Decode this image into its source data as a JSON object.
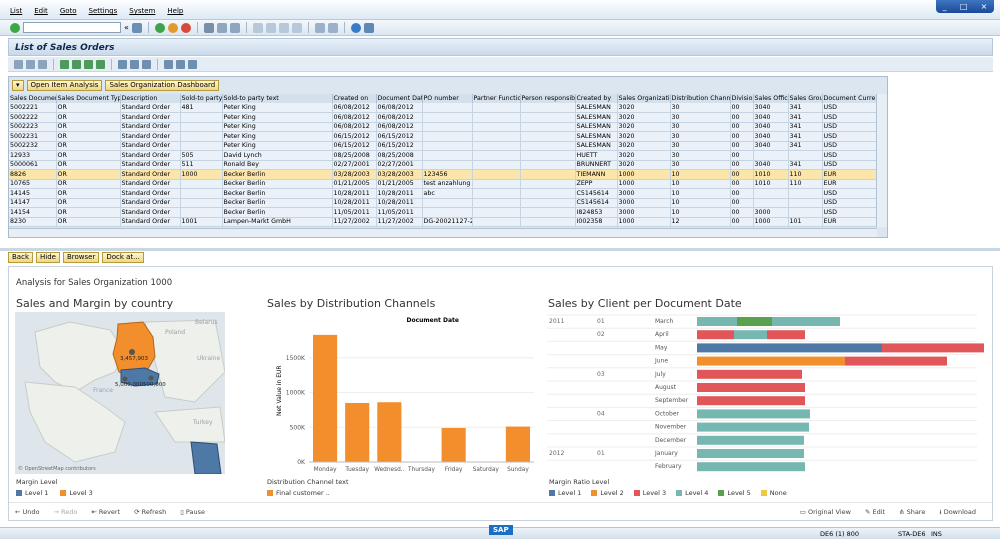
{
  "menu": [
    "List",
    "Edit",
    "Goto",
    "Settings",
    "System",
    "Help"
  ],
  "window_controls": [
    "_",
    "□",
    "×"
  ],
  "command_field": "",
  "screen_title": "List of Sales Orders",
  "grid": {
    "tool_buttons": [
      "Open Item Analysis",
      "Sales Organization Dashboard"
    ],
    "columns": [
      "Sales Document",
      "Sales Document Type",
      "Description",
      "Sold-to party",
      "Sold-to party text",
      "Created on",
      "Document Date",
      "PO number",
      "Partner Function",
      "Person responsible",
      "Created by",
      "Sales Organization",
      "Distribution Channel",
      "Division",
      "Sales Office",
      "Sales Group",
      "Document Curre"
    ],
    "rows": [
      [
        "5002221",
        "OR",
        "Standard Order",
        "481",
        "Peter King",
        "06/08/2012",
        "06/08/2012",
        "",
        "",
        "",
        "SALESMAN",
        "3020",
        "30",
        "00",
        "3040",
        "341",
        "USD"
      ],
      [
        "5002222",
        "OR",
        "Standard Order",
        "",
        "Peter King",
        "06/08/2012",
        "06/08/2012",
        "",
        "",
        "",
        "SALESMAN",
        "3020",
        "30",
        "00",
        "3040",
        "341",
        "USD"
      ],
      [
        "5002223",
        "OR",
        "Standard Order",
        "",
        "Peter King",
        "06/08/2012",
        "06/08/2012",
        "",
        "",
        "",
        "SALESMAN",
        "3020",
        "30",
        "00",
        "3040",
        "341",
        "USD"
      ],
      [
        "5002231",
        "OR",
        "Standard Order",
        "",
        "Peter King",
        "06/15/2012",
        "06/15/2012",
        "",
        "",
        "",
        "SALESMAN",
        "3020",
        "30",
        "00",
        "3040",
        "341",
        "USD"
      ],
      [
        "5002232",
        "OR",
        "Standard Order",
        "",
        "Peter King",
        "06/15/2012",
        "06/15/2012",
        "",
        "",
        "",
        "SALESMAN",
        "3020",
        "30",
        "00",
        "3040",
        "341",
        "USD"
      ],
      [
        "12933",
        "OR",
        "Standard Order",
        "505",
        "David Lynch",
        "08/25/2008",
        "08/25/2008",
        "",
        "",
        "",
        "HUETT",
        "3020",
        "30",
        "00",
        "",
        "",
        "USD"
      ],
      [
        "5000061",
        "OR",
        "Standard Order",
        "511",
        "Ronald Bey",
        "02/27/2001",
        "02/27/2001",
        "",
        "",
        "",
        "BRUNNERT",
        "3020",
        "30",
        "00",
        "3040",
        "341",
        "USD"
      ],
      [
        "8826",
        "OR",
        "Standard Order",
        "1000",
        "Becker Berlin",
        "03/28/2003",
        "03/28/2003",
        "123456",
        "",
        "",
        "TIEMANN",
        "1000",
        "10",
        "00",
        "1010",
        "110",
        "EUR"
      ],
      [
        "10765",
        "OR",
        "Standard Order",
        "",
        "Becker Berlin",
        "01/21/2005",
        "01/21/2005",
        "test anzahlung",
        "",
        "",
        "ZEPP",
        "1000",
        "10",
        "00",
        "1010",
        "110",
        "EUR"
      ],
      [
        "14145",
        "OR",
        "Standard Order",
        "",
        "Becker Berlin",
        "10/28/2011",
        "10/28/2011",
        "abc",
        "",
        "",
        "C5145614",
        "3000",
        "10",
        "00",
        "",
        "",
        "USD"
      ],
      [
        "14147",
        "OR",
        "Standard Order",
        "",
        "Becker Berlin",
        "10/28/2011",
        "10/28/2011",
        "",
        "",
        "",
        "C5145614",
        "3000",
        "10",
        "00",
        "",
        "",
        "USD"
      ],
      [
        "14154",
        "OR",
        "Standard Order",
        "",
        "Becker Berlin",
        "11/05/2011",
        "11/05/2011",
        "",
        "",
        "",
        "I824853",
        "3000",
        "10",
        "00",
        "3000",
        "",
        "USD"
      ],
      [
        "8230",
        "OR",
        "Standard Order",
        "1001",
        "Lampen-Markt GmbH",
        "11/27/2002",
        "11/27/2002",
        "DG-20021127-2",
        "",
        "",
        "I002358",
        "1000",
        "12",
        "00",
        "1000",
        "101",
        "EUR"
      ]
    ],
    "selected_row": 7
  },
  "dash_buttons": [
    "Back",
    "Hide",
    "Browser",
    "Dock at..."
  ],
  "dashboard": {
    "title": "Analysis for Sales Organization 1000",
    "panel1": {
      "title": "Sales and Margin by country",
      "labels": {
        "poland": "Poland",
        "belarus": "Belarus",
        "ukraine": "Ukraine",
        "france": "France",
        "turkey": "Turkey",
        "value1": "3,457,903",
        "value2": "5,000,000",
        "value3": "500,000",
        "attribution": "© OpenStreetMap contributors"
      },
      "legend_title": "Margin Level",
      "legend": [
        {
          "name": "Level 1",
          "color": "#4e79a7"
        },
        {
          "name": "Level 3",
          "color": "#f28e2b"
        }
      ]
    },
    "panel2": {
      "title": "Sales by Distribution Channels",
      "legend_title": "Distribution Channel text",
      "legend": [
        {
          "name": "Final customer ..",
          "color": "#f28e2b"
        }
      ]
    },
    "panel3": {
      "title": "Sales by Client per Document Date",
      "legend_title": "Margin Ratio Level",
      "legend": [
        {
          "name": "Level 1",
          "color": "#4e79a7"
        },
        {
          "name": "Level 2",
          "color": "#f28e2b"
        },
        {
          "name": "Level 3",
          "color": "#e15759"
        },
        {
          "name": "Level 4",
          "color": "#76b7b2"
        },
        {
          "name": "Level 5",
          "color": "#59a14f"
        },
        {
          "name": "None",
          "color": "#edc948"
        }
      ]
    },
    "footer_left": [
      "Undo",
      "Redo",
      "Revert",
      "Refresh",
      "Pause"
    ],
    "footer_right": [
      "Original View",
      "Edit",
      "Share",
      "Download"
    ]
  },
  "chart_data": [
    {
      "type": "bar",
      "title": "Document Date",
      "ylabel": "Net Value in EUR",
      "categories": [
        "Monday",
        "Tuesday",
        "Wednesd..",
        "Thursday",
        "Friday",
        "Saturday",
        "Sunday"
      ],
      "values": [
        1830000,
        850000,
        860000,
        0,
        490000,
        0,
        510000
      ],
      "yticks": [
        "0K",
        "500K",
        "1000K",
        "1500K"
      ],
      "ylim": [
        0,
        1900000
      ],
      "color": "#f28e2b"
    },
    {
      "type": "bar",
      "orientation": "horizontal-stacked",
      "categories": [
        {
          "year": "2011",
          "quarter": "01",
          "month": "March"
        },
        {
          "year": "",
          "quarter": "02",
          "month": "April"
        },
        {
          "year": "",
          "quarter": "",
          "month": "May"
        },
        {
          "year": "",
          "quarter": "",
          "month": "June"
        },
        {
          "year": "",
          "quarter": "03",
          "month": "July"
        },
        {
          "year": "",
          "quarter": "",
          "month": "August"
        },
        {
          "year": "",
          "quarter": "",
          "month": "September"
        },
        {
          "year": "",
          "quarter": "04",
          "month": "October"
        },
        {
          "year": "",
          "quarter": "",
          "month": "November"
        },
        {
          "year": "",
          "quarter": "",
          "month": "December"
        },
        {
          "year": "2012",
          "quarter": "01",
          "month": "January"
        },
        {
          "year": "",
          "quarter": "",
          "month": "February"
        }
      ],
      "rows": [
        [
          {
            "level": "Level 4",
            "value": 40
          },
          {
            "level": "Level 5",
            "value": 35
          },
          {
            "level": "Level 4",
            "value": 68
          }
        ],
        [
          {
            "level": "Level 3",
            "value": 37
          },
          {
            "level": "Level 4",
            "value": 33
          },
          {
            "level": "Level 3",
            "value": 38
          }
        ],
        [
          {
            "level": "Level 1",
            "value": 185
          },
          {
            "level": "Level 3",
            "value": 102
          }
        ],
        [
          {
            "level": "Level 2",
            "value": 148
          },
          {
            "level": "Level 3",
            "value": 102
          }
        ],
        [
          {
            "level": "Level 3",
            "value": 105
          }
        ],
        [
          {
            "level": "Level 3",
            "value": 108
          }
        ],
        [
          {
            "level": "Level 3",
            "value": 108
          }
        ],
        [
          {
            "level": "Level 4",
            "value": 113
          }
        ],
        [
          {
            "level": "Level 4",
            "value": 112
          }
        ],
        [
          {
            "level": "Level 4",
            "value": 107
          }
        ],
        [
          {
            "level": "Level 4",
            "value": 107
          }
        ],
        [
          {
            "level": "Level 4",
            "value": 108
          }
        ]
      ]
    }
  ],
  "statusbar": {
    "system": "DE6 (1) 800",
    "server": "STA-DE6",
    "mode": "INS",
    "logo": "SAP"
  }
}
